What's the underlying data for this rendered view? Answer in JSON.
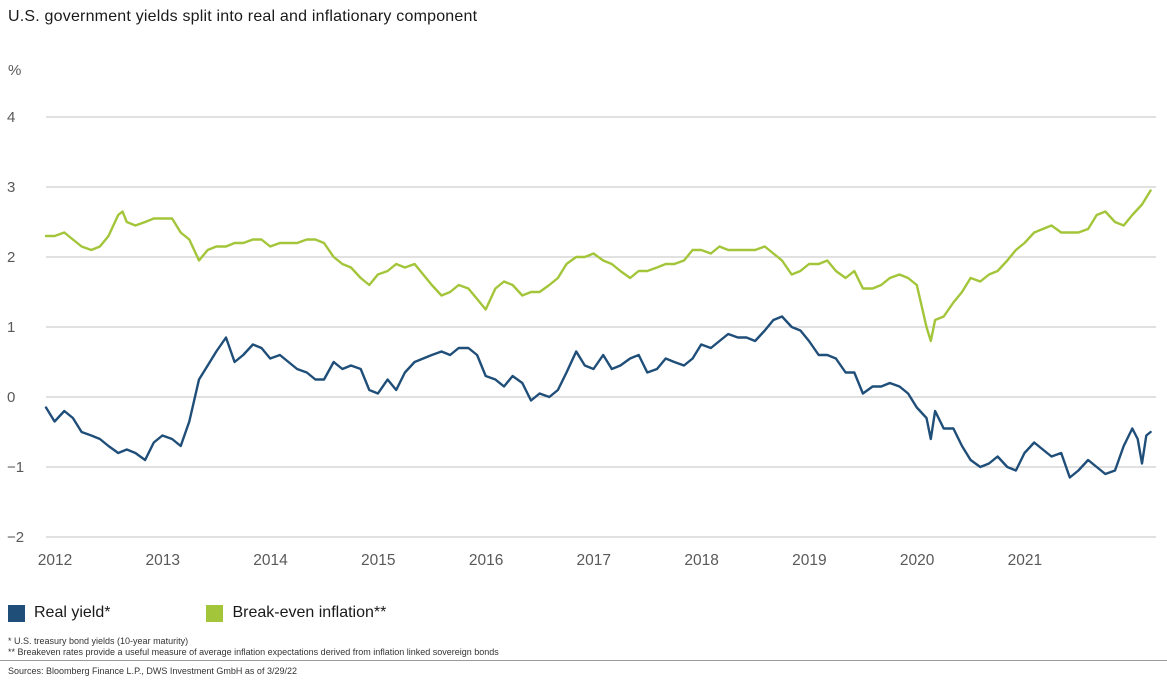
{
  "title": "U.S. government yields split into real and inflationary component",
  "footnotes": [
    "* U.S. treasury bond yields (10-year maturity)",
    "** Breakeven rates provide a useful measure of average inflation expectations derived from inflation linked sovereign bonds"
  ],
  "sources": "Sources: Bloomberg Finance L.P., DWS Investment GmbH as of 3/29/22",
  "chart_data": {
    "type": "line",
    "title": "U.S. government yields split into real and inflationary component",
    "xlabel": "",
    "ylabel": "%",
    "ylim": [
      -2,
      4
    ],
    "xlim": [
      2012,
      2022.3
    ],
    "y_ticks": [
      4,
      3,
      2,
      1,
      0,
      -1,
      -2
    ],
    "x_ticks": [
      2012,
      2013,
      2014,
      2015,
      2016,
      2017,
      2018,
      2019,
      2020,
      2021
    ],
    "grid": "horizontal",
    "legend_position": "bottom",
    "series": [
      {
        "name": "Real yield*",
        "color": "#1f4e79",
        "points": [
          [
            2012.0,
            -0.15
          ],
          [
            2012.08,
            -0.35
          ],
          [
            2012.17,
            -0.2
          ],
          [
            2012.25,
            -0.3
          ],
          [
            2012.33,
            -0.5
          ],
          [
            2012.42,
            -0.55
          ],
          [
            2012.5,
            -0.6
          ],
          [
            2012.58,
            -0.7
          ],
          [
            2012.67,
            -0.8
          ],
          [
            2012.75,
            -0.75
          ],
          [
            2012.83,
            -0.8
          ],
          [
            2012.92,
            -0.9
          ],
          [
            2013.0,
            -0.65
          ],
          [
            2013.08,
            -0.55
          ],
          [
            2013.17,
            -0.6
          ],
          [
            2013.25,
            -0.7
          ],
          [
            2013.33,
            -0.35
          ],
          [
            2013.42,
            0.25
          ],
          [
            2013.5,
            0.45
          ],
          [
            2013.58,
            0.65
          ],
          [
            2013.67,
            0.85
          ],
          [
            2013.75,
            0.5
          ],
          [
            2013.83,
            0.6
          ],
          [
            2013.92,
            0.75
          ],
          [
            2014.0,
            0.7
          ],
          [
            2014.08,
            0.55
          ],
          [
            2014.17,
            0.6
          ],
          [
            2014.25,
            0.5
          ],
          [
            2014.33,
            0.4
          ],
          [
            2014.42,
            0.35
          ],
          [
            2014.5,
            0.25
          ],
          [
            2014.58,
            0.25
          ],
          [
            2014.67,
            0.5
          ],
          [
            2014.75,
            0.4
          ],
          [
            2014.83,
            0.45
          ],
          [
            2014.92,
            0.4
          ],
          [
            2015.0,
            0.1
          ],
          [
            2015.08,
            0.05
          ],
          [
            2015.17,
            0.25
          ],
          [
            2015.25,
            0.1
          ],
          [
            2015.33,
            0.35
          ],
          [
            2015.42,
            0.5
          ],
          [
            2015.5,
            0.55
          ],
          [
            2015.58,
            0.6
          ],
          [
            2015.67,
            0.65
          ],
          [
            2015.75,
            0.6
          ],
          [
            2015.83,
            0.7
          ],
          [
            2015.92,
            0.7
          ],
          [
            2016.0,
            0.6
          ],
          [
            2016.08,
            0.3
          ],
          [
            2016.17,
            0.25
          ],
          [
            2016.25,
            0.15
          ],
          [
            2016.33,
            0.3
          ],
          [
            2016.42,
            0.2
          ],
          [
            2016.5,
            -0.05
          ],
          [
            2016.58,
            0.05
          ],
          [
            2016.67,
            0.0
          ],
          [
            2016.75,
            0.1
          ],
          [
            2016.83,
            0.35
          ],
          [
            2016.92,
            0.65
          ],
          [
            2017.0,
            0.45
          ],
          [
            2017.08,
            0.4
          ],
          [
            2017.17,
            0.6
          ],
          [
            2017.25,
            0.4
          ],
          [
            2017.33,
            0.45
          ],
          [
            2017.42,
            0.55
          ],
          [
            2017.5,
            0.6
          ],
          [
            2017.58,
            0.35
          ],
          [
            2017.67,
            0.4
          ],
          [
            2017.75,
            0.55
          ],
          [
            2017.83,
            0.5
          ],
          [
            2017.92,
            0.45
          ],
          [
            2018.0,
            0.55
          ],
          [
            2018.08,
            0.75
          ],
          [
            2018.17,
            0.7
          ],
          [
            2018.25,
            0.8
          ],
          [
            2018.33,
            0.9
          ],
          [
            2018.42,
            0.85
          ],
          [
            2018.5,
            0.85
          ],
          [
            2018.58,
            0.8
          ],
          [
            2018.67,
            0.95
          ],
          [
            2018.75,
            1.1
          ],
          [
            2018.83,
            1.15
          ],
          [
            2018.92,
            1.0
          ],
          [
            2019.0,
            0.95
          ],
          [
            2019.08,
            0.8
          ],
          [
            2019.17,
            0.6
          ],
          [
            2019.25,
            0.6
          ],
          [
            2019.33,
            0.55
          ],
          [
            2019.42,
            0.35
          ],
          [
            2019.5,
            0.35
          ],
          [
            2019.58,
            0.05
          ],
          [
            2019.67,
            0.15
          ],
          [
            2019.75,
            0.15
          ],
          [
            2019.83,
            0.2
          ],
          [
            2019.92,
            0.15
          ],
          [
            2020.0,
            0.05
          ],
          [
            2020.08,
            -0.15
          ],
          [
            2020.17,
            -0.3
          ],
          [
            2020.21,
            -0.6
          ],
          [
            2020.25,
            -0.2
          ],
          [
            2020.33,
            -0.45
          ],
          [
            2020.42,
            -0.45
          ],
          [
            2020.5,
            -0.7
          ],
          [
            2020.58,
            -0.9
          ],
          [
            2020.67,
            -1.0
          ],
          [
            2020.75,
            -0.95
          ],
          [
            2020.83,
            -0.85
          ],
          [
            2020.92,
            -1.0
          ],
          [
            2021.0,
            -1.05
          ],
          [
            2021.08,
            -0.8
          ],
          [
            2021.17,
            -0.65
          ],
          [
            2021.25,
            -0.75
          ],
          [
            2021.33,
            -0.85
          ],
          [
            2021.42,
            -0.8
          ],
          [
            2021.5,
            -1.15
          ],
          [
            2021.58,
            -1.05
          ],
          [
            2021.67,
            -0.9
          ],
          [
            2021.75,
            -1.0
          ],
          [
            2021.83,
            -1.1
          ],
          [
            2021.92,
            -1.05
          ],
          [
            2022.0,
            -0.7
          ],
          [
            2022.08,
            -0.45
          ],
          [
            2022.13,
            -0.6
          ],
          [
            2022.17,
            -0.95
          ],
          [
            2022.21,
            -0.55
          ],
          [
            2022.25,
            -0.5
          ]
        ]
      },
      {
        "name": "Break-even inflation**",
        "color": "#a3c53a",
        "points": [
          [
            2012.0,
            2.3
          ],
          [
            2012.08,
            2.3
          ],
          [
            2012.17,
            2.35
          ],
          [
            2012.25,
            2.25
          ],
          [
            2012.33,
            2.15
          ],
          [
            2012.42,
            2.1
          ],
          [
            2012.5,
            2.15
          ],
          [
            2012.58,
            2.3
          ],
          [
            2012.67,
            2.6
          ],
          [
            2012.71,
            2.65
          ],
          [
            2012.75,
            2.5
          ],
          [
            2012.83,
            2.45
          ],
          [
            2012.92,
            2.5
          ],
          [
            2013.0,
            2.55
          ],
          [
            2013.08,
            2.55
          ],
          [
            2013.17,
            2.55
          ],
          [
            2013.25,
            2.35
          ],
          [
            2013.33,
            2.25
          ],
          [
            2013.42,
            1.95
          ],
          [
            2013.5,
            2.1
          ],
          [
            2013.58,
            2.15
          ],
          [
            2013.67,
            2.15
          ],
          [
            2013.75,
            2.2
          ],
          [
            2013.83,
            2.2
          ],
          [
            2013.92,
            2.25
          ],
          [
            2014.0,
            2.25
          ],
          [
            2014.08,
            2.15
          ],
          [
            2014.17,
            2.2
          ],
          [
            2014.25,
            2.2
          ],
          [
            2014.33,
            2.2
          ],
          [
            2014.42,
            2.25
          ],
          [
            2014.5,
            2.25
          ],
          [
            2014.58,
            2.2
          ],
          [
            2014.67,
            2.0
          ],
          [
            2014.75,
            1.9
          ],
          [
            2014.83,
            1.85
          ],
          [
            2014.92,
            1.7
          ],
          [
            2015.0,
            1.6
          ],
          [
            2015.08,
            1.75
          ],
          [
            2015.17,
            1.8
          ],
          [
            2015.25,
            1.9
          ],
          [
            2015.33,
            1.85
          ],
          [
            2015.42,
            1.9
          ],
          [
            2015.5,
            1.75
          ],
          [
            2015.58,
            1.6
          ],
          [
            2015.67,
            1.45
          ],
          [
            2015.75,
            1.5
          ],
          [
            2015.83,
            1.6
          ],
          [
            2015.92,
            1.55
          ],
          [
            2016.0,
            1.4
          ],
          [
            2016.08,
            1.25
          ],
          [
            2016.17,
            1.55
          ],
          [
            2016.25,
            1.65
          ],
          [
            2016.33,
            1.6
          ],
          [
            2016.42,
            1.45
          ],
          [
            2016.5,
            1.5
          ],
          [
            2016.58,
            1.5
          ],
          [
            2016.67,
            1.6
          ],
          [
            2016.75,
            1.7
          ],
          [
            2016.83,
            1.9
          ],
          [
            2016.92,
            2.0
          ],
          [
            2017.0,
            2.0
          ],
          [
            2017.08,
            2.05
          ],
          [
            2017.17,
            1.95
          ],
          [
            2017.25,
            1.9
          ],
          [
            2017.33,
            1.8
          ],
          [
            2017.42,
            1.7
          ],
          [
            2017.5,
            1.8
          ],
          [
            2017.58,
            1.8
          ],
          [
            2017.67,
            1.85
          ],
          [
            2017.75,
            1.9
          ],
          [
            2017.83,
            1.9
          ],
          [
            2017.92,
            1.95
          ],
          [
            2018.0,
            2.1
          ],
          [
            2018.08,
            2.1
          ],
          [
            2018.17,
            2.05
          ],
          [
            2018.25,
            2.15
          ],
          [
            2018.33,
            2.1
          ],
          [
            2018.42,
            2.1
          ],
          [
            2018.5,
            2.1
          ],
          [
            2018.58,
            2.1
          ],
          [
            2018.67,
            2.15
          ],
          [
            2018.75,
            2.05
          ],
          [
            2018.83,
            1.95
          ],
          [
            2018.92,
            1.75
          ],
          [
            2019.0,
            1.8
          ],
          [
            2019.08,
            1.9
          ],
          [
            2019.17,
            1.9
          ],
          [
            2019.25,
            1.95
          ],
          [
            2019.33,
            1.8
          ],
          [
            2019.42,
            1.7
          ],
          [
            2019.5,
            1.8
          ],
          [
            2019.58,
            1.55
          ],
          [
            2019.67,
            1.55
          ],
          [
            2019.75,
            1.6
          ],
          [
            2019.83,
            1.7
          ],
          [
            2019.92,
            1.75
          ],
          [
            2020.0,
            1.7
          ],
          [
            2020.08,
            1.6
          ],
          [
            2020.17,
            1.0
          ],
          [
            2020.21,
            0.8
          ],
          [
            2020.25,
            1.1
          ],
          [
            2020.33,
            1.15
          ],
          [
            2020.42,
            1.35
          ],
          [
            2020.5,
            1.5
          ],
          [
            2020.58,
            1.7
          ],
          [
            2020.67,
            1.65
          ],
          [
            2020.75,
            1.75
          ],
          [
            2020.83,
            1.8
          ],
          [
            2020.92,
            1.95
          ],
          [
            2021.0,
            2.1
          ],
          [
            2021.08,
            2.2
          ],
          [
            2021.17,
            2.35
          ],
          [
            2021.25,
            2.4
          ],
          [
            2021.33,
            2.45
          ],
          [
            2021.42,
            2.35
          ],
          [
            2021.5,
            2.35
          ],
          [
            2021.58,
            2.35
          ],
          [
            2021.67,
            2.4
          ],
          [
            2021.75,
            2.6
          ],
          [
            2021.83,
            2.65
          ],
          [
            2021.92,
            2.5
          ],
          [
            2022.0,
            2.45
          ],
          [
            2022.08,
            2.6
          ],
          [
            2022.17,
            2.75
          ],
          [
            2022.25,
            2.95
          ]
        ]
      }
    ]
  }
}
